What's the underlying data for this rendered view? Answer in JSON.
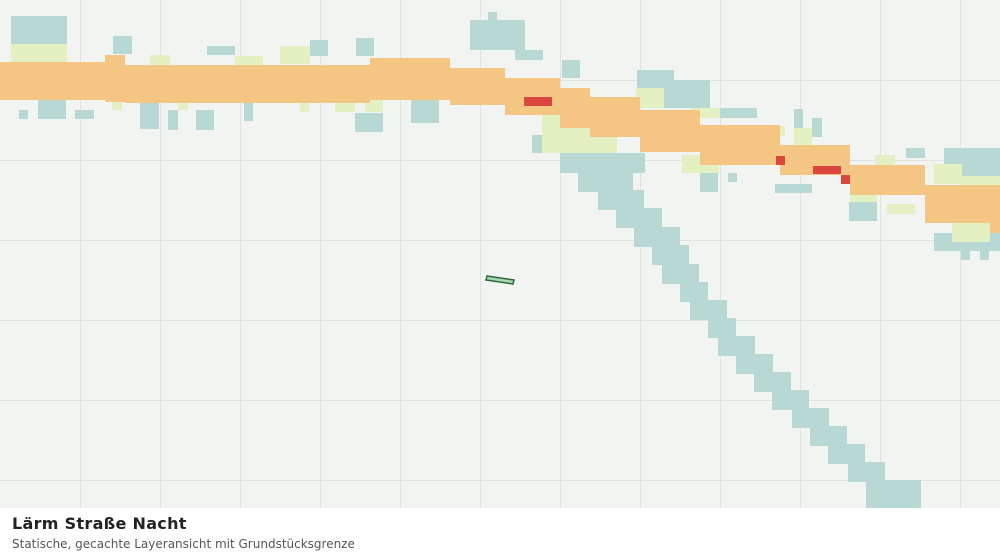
{
  "footer": {
    "title": "Lärm Straße Nacht",
    "subtitle": "Statische, gecachte Layeransicht mit Grundstücksgrenze"
  }
}
